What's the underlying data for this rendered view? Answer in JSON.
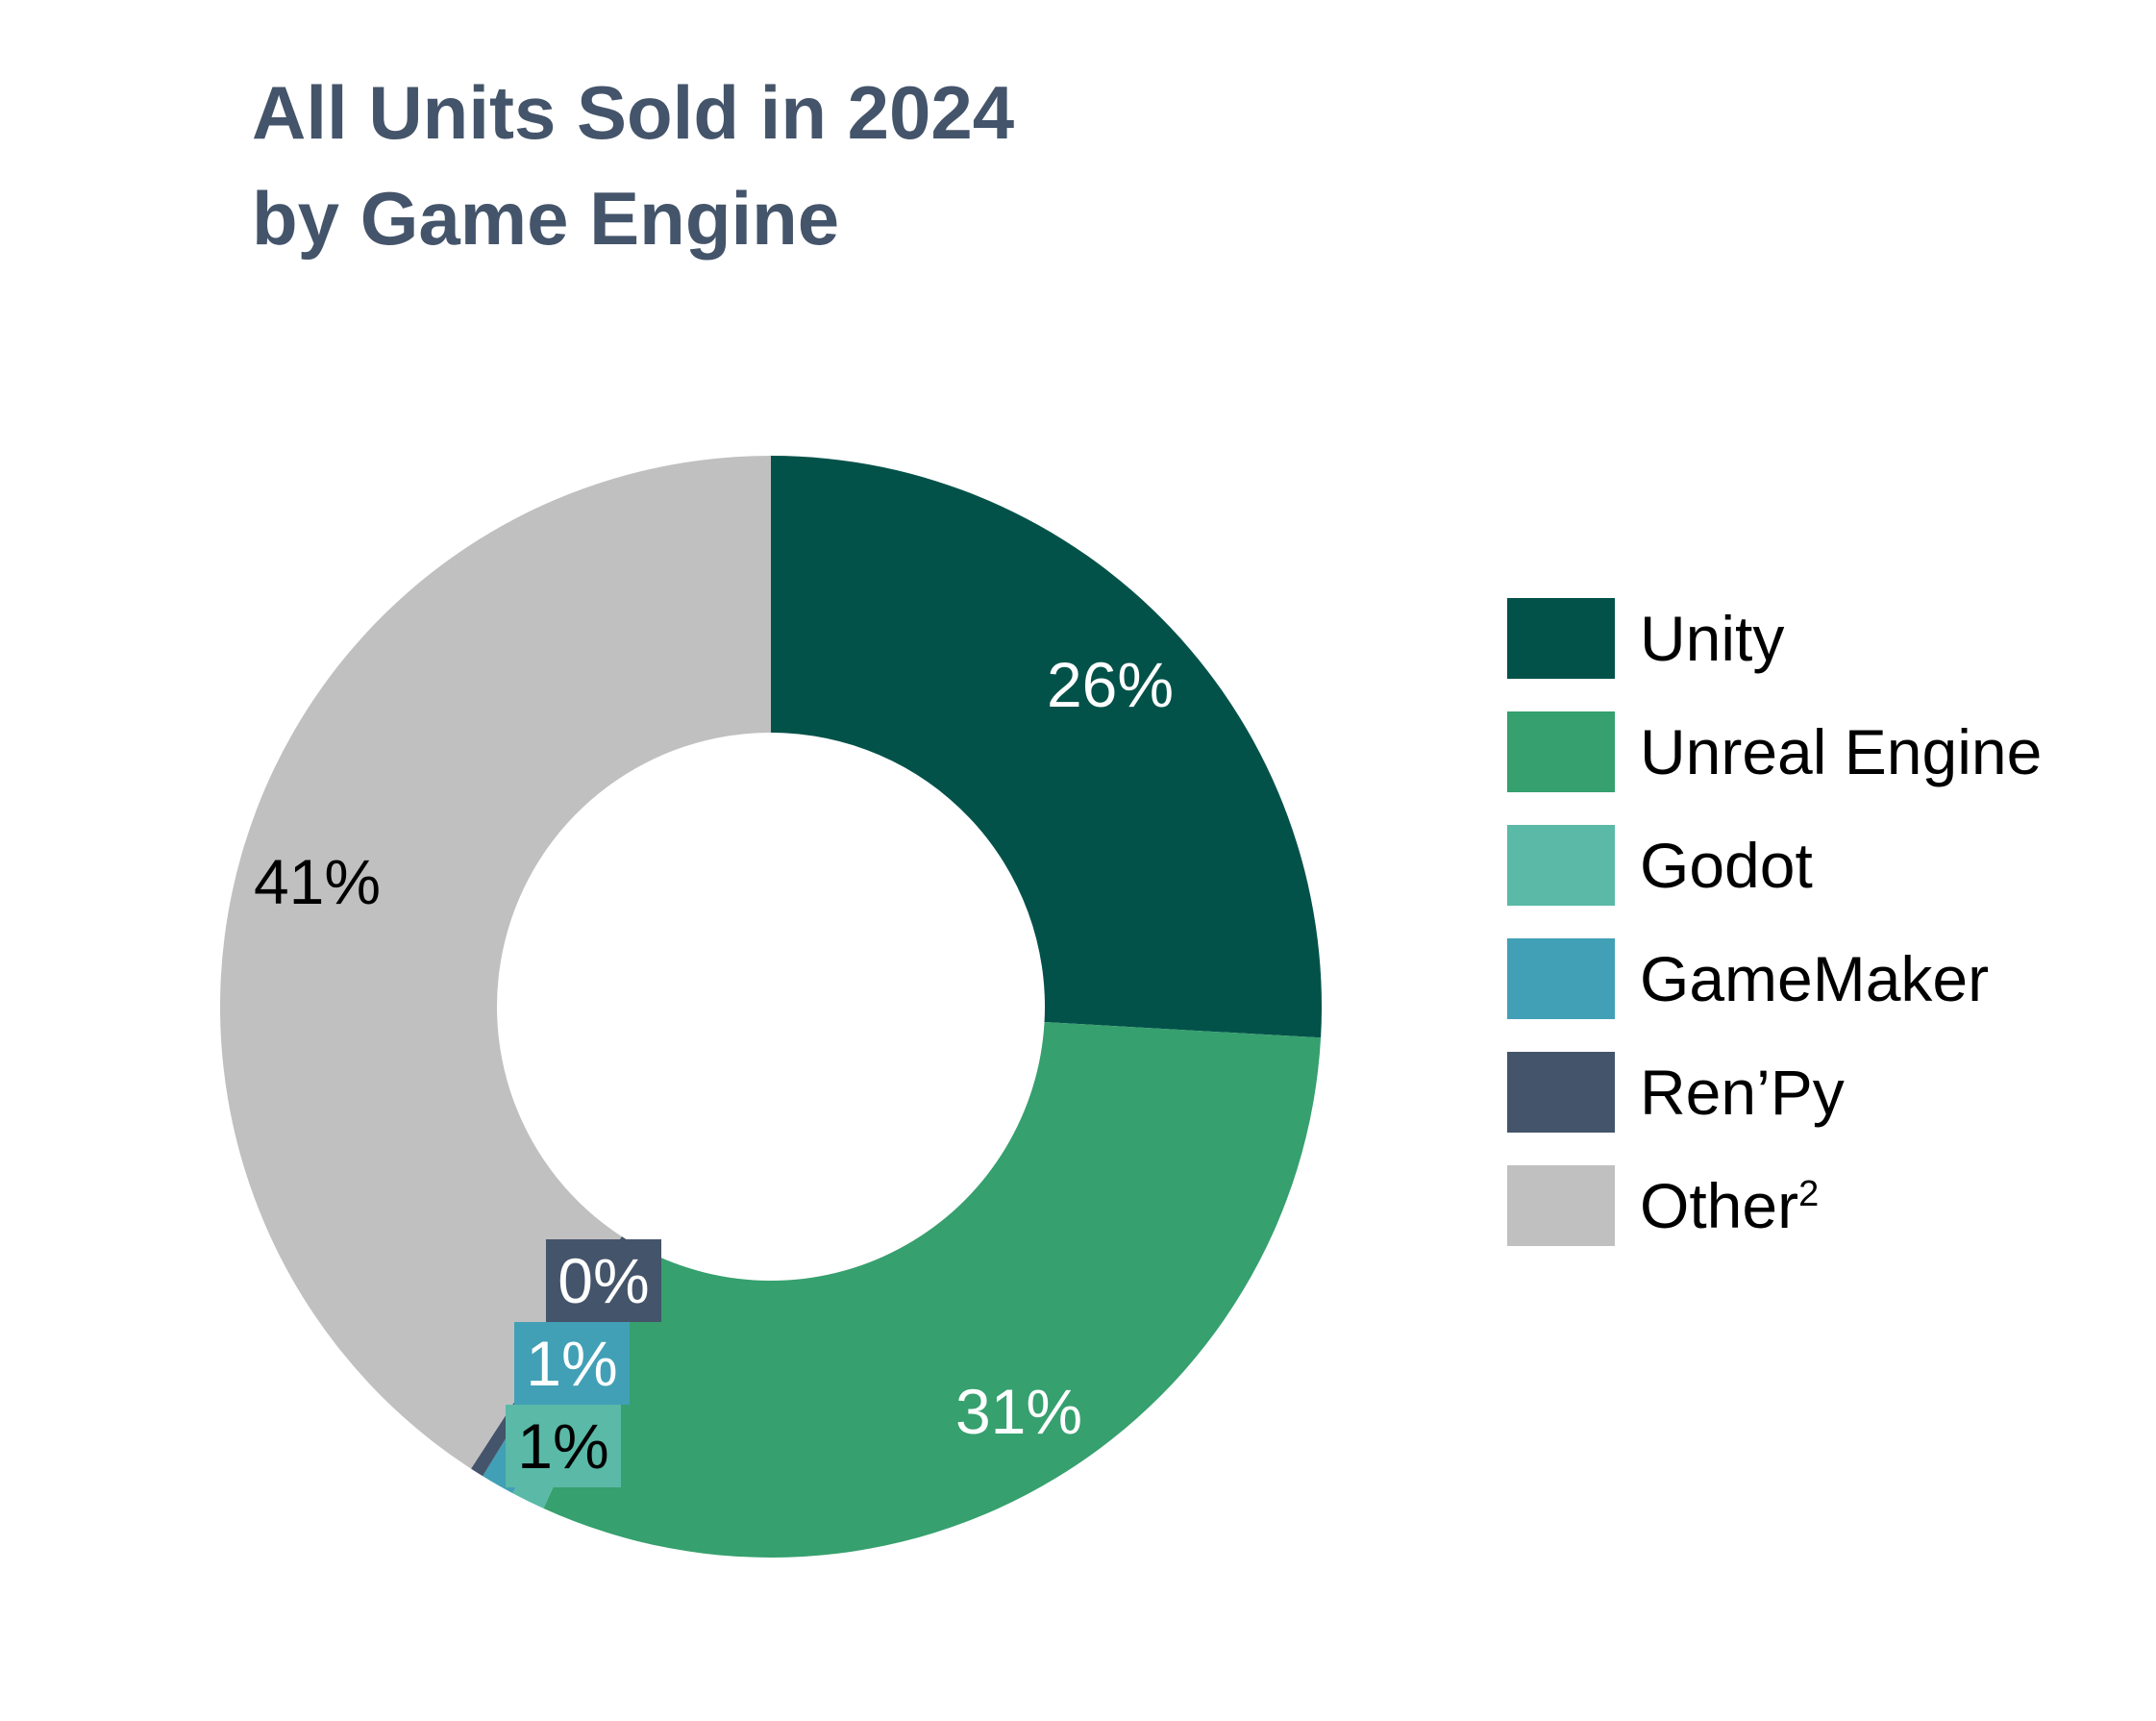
{
  "chart_data": {
    "type": "pie",
    "variant": "donut",
    "title": "All Units Sold in 2024 by Game Engine",
    "title_lines": [
      "All Units Sold in 2024",
      "by Game Engine"
    ],
    "slices": [
      {
        "name": "Unity",
        "value": 26,
        "label": "26%",
        "color": "#03524a",
        "label_color": "#ffffff"
      },
      {
        "name": "Unreal Engine",
        "value": 31,
        "label": "31%",
        "color": "#36a06e",
        "label_color": "#ffffff"
      },
      {
        "name": "Godot",
        "value": 1,
        "label": "1%",
        "color": "#5ab9a7",
        "label_color": "#000000"
      },
      {
        "name": "GameMaker",
        "value": 1,
        "label": "1%",
        "color": "#41a0b6",
        "label_color": "#ffffff"
      },
      {
        "name": "Ren’Py",
        "value": 0.4,
        "label": "0%",
        "color": "#44546a",
        "label_color": "#ffffff"
      },
      {
        "name": "Other",
        "value": 41,
        "label": "41%",
        "color": "#c0c0c0",
        "label_color": "#000000"
      }
    ],
    "legend": {
      "position": "right",
      "entries": [
        {
          "text": "Unity",
          "sup": ""
        },
        {
          "text": "Unreal Engine",
          "sup": ""
        },
        {
          "text": "Godot",
          "sup": ""
        },
        {
          "text": "GameMaker",
          "sup": ""
        },
        {
          "text": "Ren’Py",
          "sup": ""
        },
        {
          "text": "Other",
          "sup": "2"
        }
      ]
    },
    "colors": {
      "title": "#44546a",
      "background": "#ffffff"
    }
  }
}
